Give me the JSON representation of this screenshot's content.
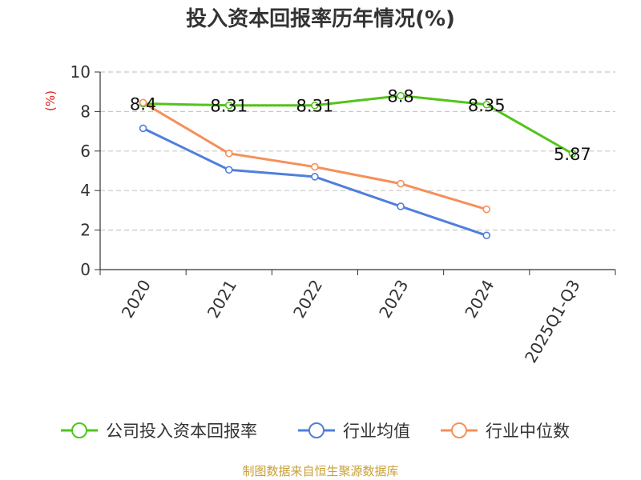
{
  "chart_data": {
    "type": "line",
    "title": "投入资本回报率历年情况(%)",
    "ylabel": "(%)",
    "xlabel": "",
    "categories": [
      "2020",
      "2021",
      "2022",
      "2023",
      "2024",
      "2025Q1-Q3"
    ],
    "ylim": [
      0,
      10
    ],
    "yticks": [
      0,
      2,
      4,
      6,
      8,
      10
    ],
    "grid": true,
    "legend_position": "bottom",
    "series": [
      {
        "name": "公司投入资本回报率",
        "color": "#52c41a",
        "values": [
          8.4,
          8.31,
          8.31,
          8.8,
          8.35,
          5.87
        ],
        "labels": [
          "8.4",
          "8.31",
          "8.31",
          "8.8",
          "8.35",
          "5.87"
        ]
      },
      {
        "name": "行业均值",
        "color": "#4f7fdc",
        "values": [
          7.15,
          5.05,
          4.7,
          3.2,
          1.73,
          null
        ]
      },
      {
        "name": "行业中位数",
        "color": "#f5905a",
        "values": [
          8.45,
          5.88,
          5.2,
          4.35,
          3.05,
          null
        ]
      }
    ],
    "source": "制图数据来自恒生聚源数据库"
  }
}
